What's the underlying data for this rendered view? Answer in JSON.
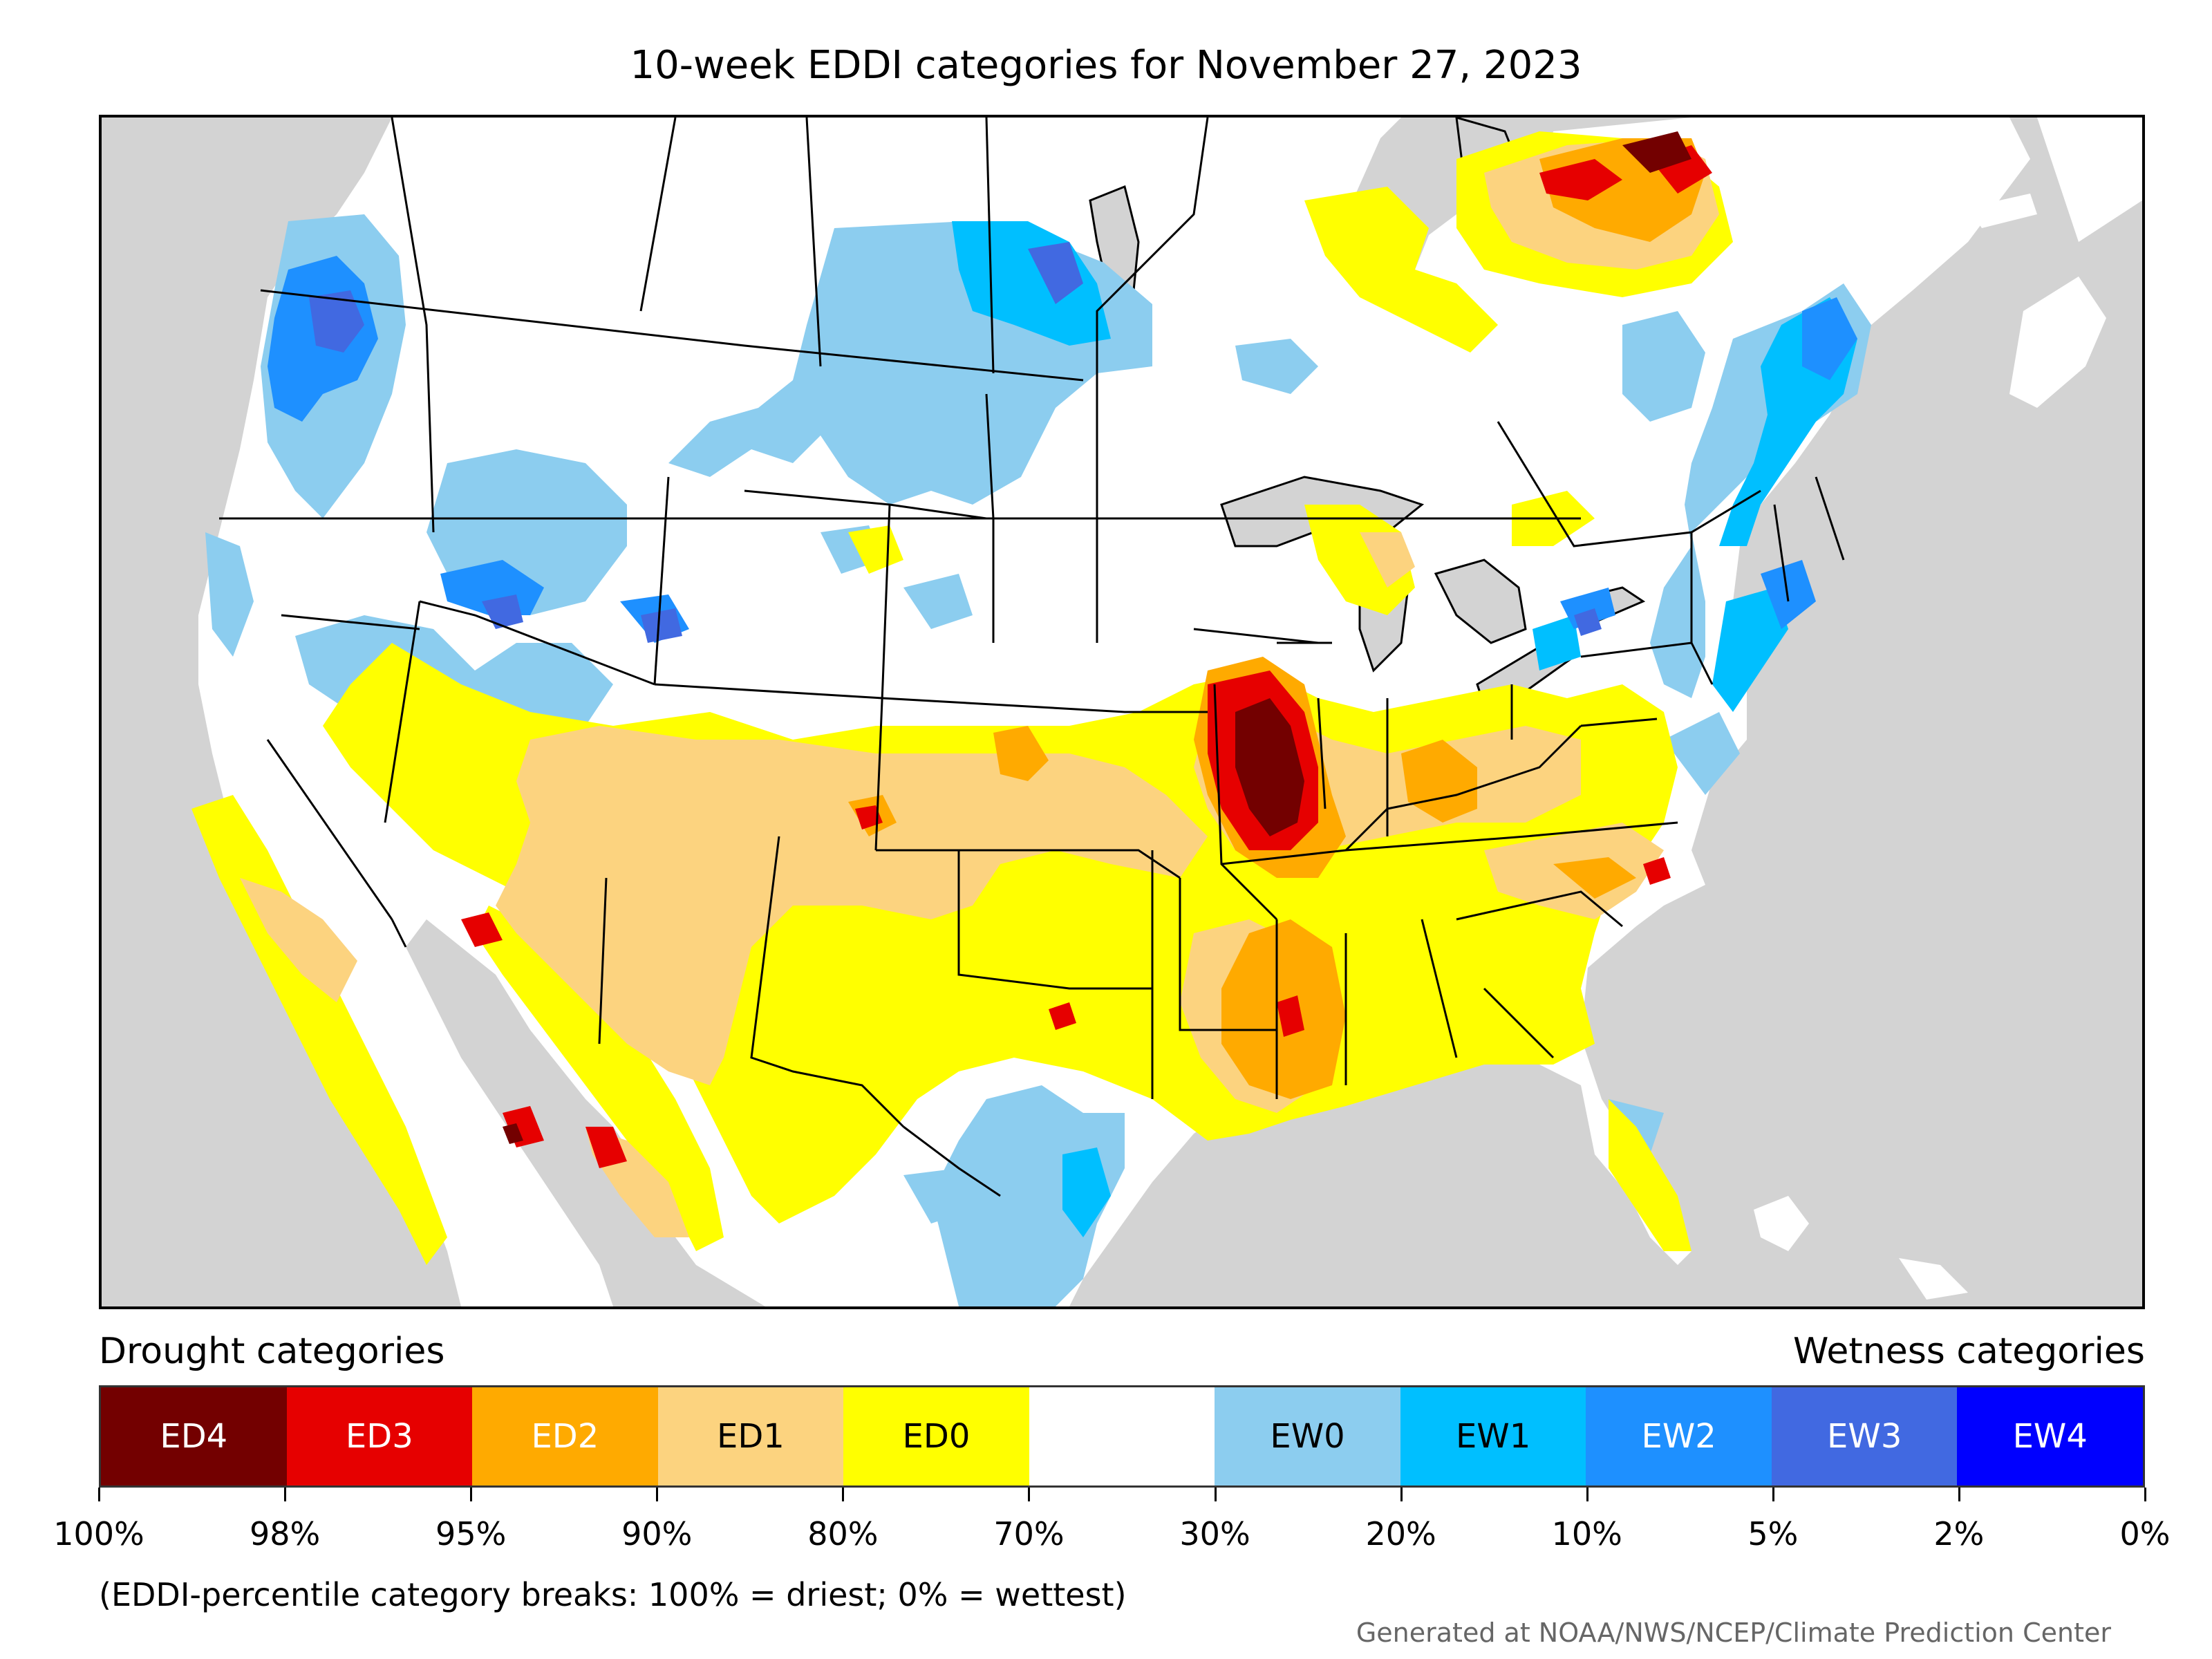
{
  "title": "10-week EDDI categories for November 27, 2023",
  "legend": {
    "drought_label": "Drought categories",
    "wetness_label": "Wetness categories",
    "categories": [
      {
        "label": "ED4",
        "color": "#730000",
        "text_color": "#ffffff"
      },
      {
        "label": "ED3",
        "color": "#e60000",
        "text_color": "#ffffff"
      },
      {
        "label": "ED2",
        "color": "#ffaa00",
        "text_color": "#ffffff"
      },
      {
        "label": "ED1",
        "color": "#fcd37f",
        "text_color": "#000000"
      },
      {
        "label": "ED0",
        "color": "#ffff00",
        "text_color": "#000000"
      },
      {
        "label": "",
        "color": "#ffffff",
        "text_color": "#000000"
      },
      {
        "label": "EW0",
        "color": "#8ccdef",
        "text_color": "#000000"
      },
      {
        "label": "EW1",
        "color": "#00bfff",
        "text_color": "#000000"
      },
      {
        "label": "EW2",
        "color": "#1e90ff",
        "text_color": "#ffffff"
      },
      {
        "label": "EW3",
        "color": "#4169e1",
        "text_color": "#ffffff"
      },
      {
        "label": "EW4",
        "color": "#0000ff",
        "text_color": "#ffffff"
      }
    ],
    "tick_labels": [
      "100%",
      "98%",
      "95%",
      "90%",
      "80%",
      "70%",
      "30%",
      "20%",
      "10%",
      "5%",
      "2%",
      "0%"
    ]
  },
  "note": "(EDDI-percentile category breaks: 100% = driest; 0% = wettest)",
  "credit": "Generated at NOAA/NWS/NCEP/Climate Prediction Center",
  "map": {
    "ocean_color": "#d3d3d3",
    "land_color": "#ffffff",
    "border_color": "#000000"
  }
}
